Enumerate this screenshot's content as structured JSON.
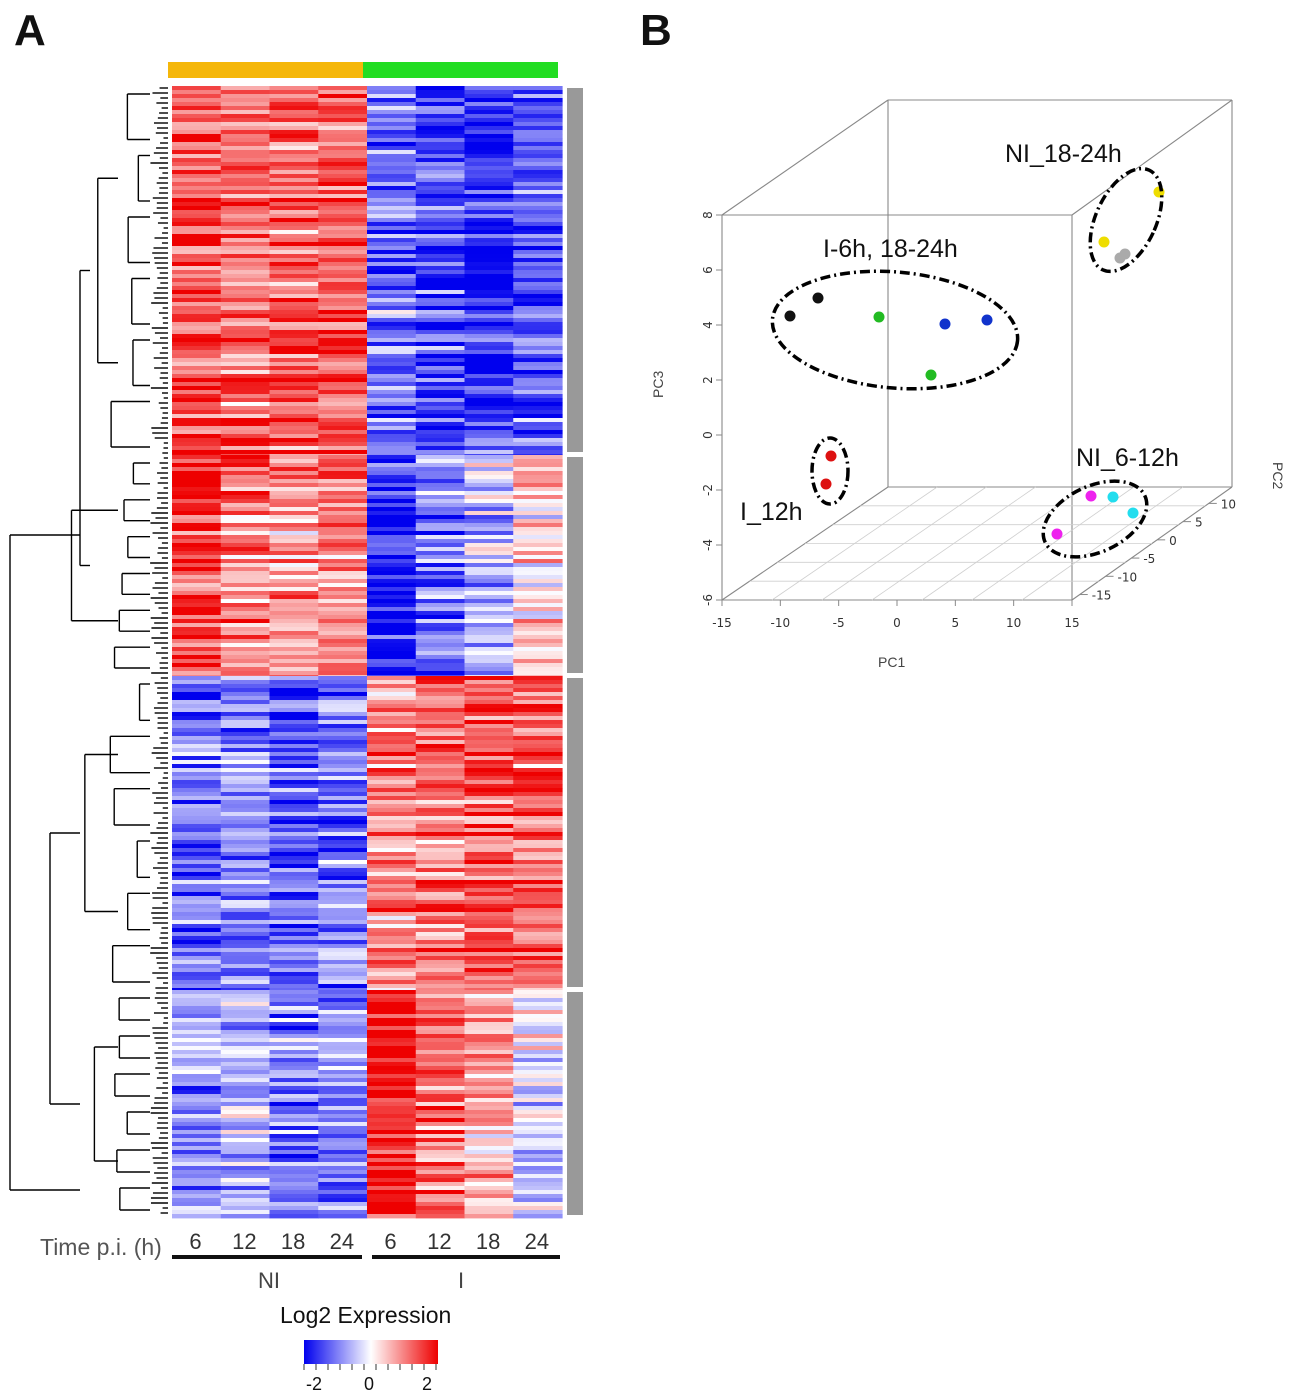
{
  "panels": {
    "a": "A",
    "b": "B"
  },
  "chart_data": [
    {
      "type": "heatmap",
      "title": "",
      "columns": [
        "6",
        "12",
        "18",
        "24",
        "6",
        "12",
        "18",
        "24"
      ],
      "column_groups": [
        {
          "name": "NI",
          "color": "#f5b70a",
          "span": [
            0,
            3
          ]
        },
        {
          "name": "I",
          "color": "#22dd22",
          "span": [
            4,
            7
          ]
        }
      ],
      "xlabel": "Time p.i. (h)",
      "row_clusters": 4,
      "cluster_bar_color": "#999999",
      "cluster_profiles": [
        {
          "cluster": 1,
          "values": [
            1.4,
            1.2,
            1.3,
            1.4,
            -1.0,
            -1.4,
            -1.6,
            -1.2
          ]
        },
        {
          "cluster": 2,
          "values": [
            1.5,
            1.0,
            0.8,
            1.0,
            -1.8,
            -1.0,
            -0.5,
            0.3
          ]
        },
        {
          "cluster": 3,
          "values": [
            -1.0,
            -0.9,
            -1.3,
            -1.0,
            1.0,
            1.2,
            1.4,
            1.2
          ]
        },
        {
          "cluster": 4,
          "values": [
            -0.8,
            -0.6,
            -1.0,
            -1.1,
            1.8,
            1.2,
            0.6,
            -0.3
          ]
        }
      ],
      "colorbar": {
        "label": "Log2 Expression",
        "ticks": [
          "-2",
          "0",
          "2"
        ],
        "colors": [
          "#0000ee",
          "#ffffff",
          "#ee0000"
        ],
        "range": [
          -2,
          2
        ]
      }
    },
    {
      "type": "scatter",
      "subtype": "3d-pca",
      "xlabel": "PC1",
      "ylabel": "PC3",
      "zlabel": "PC2",
      "xticks": [
        "-15",
        "-10",
        "-5",
        "0",
        "5",
        "10",
        "15"
      ],
      "yticks": [
        "-6",
        "-4",
        "-2",
        "0",
        "2",
        "4",
        "6",
        "8"
      ],
      "zticks": [
        "-15",
        "-10",
        "-5",
        "0",
        "5",
        "10"
      ],
      "annotations": [
        "NI_18-24h",
        "I-6h, 18-24h",
        "NI_6-12h",
        "I_12h"
      ],
      "points": [
        {
          "group": "I-6h, 18-24h",
          "color": "#111111"
        },
        {
          "group": "I-6h, 18-24h",
          "color": "#111111"
        },
        {
          "group": "I-6h, 18-24h",
          "color": "#22bb22"
        },
        {
          "group": "I-6h, 18-24h",
          "color": "#22bb22"
        },
        {
          "group": "I-6h, 18-24h",
          "color": "#1133cc"
        },
        {
          "group": "I-6h, 18-24h",
          "color": "#1133cc"
        },
        {
          "group": "I_12h",
          "color": "#dd1111"
        },
        {
          "group": "I_12h",
          "color": "#dd1111"
        },
        {
          "group": "NI_18-24h",
          "color": "#eedd00"
        },
        {
          "group": "NI_18-24h",
          "color": "#eedd00"
        },
        {
          "group": "NI_18-24h",
          "color": "#aaaaaa"
        },
        {
          "group": "NI_18-24h",
          "color": "#aaaaaa"
        },
        {
          "group": "NI_6-12h",
          "color": "#ee22ee"
        },
        {
          "group": "NI_6-12h",
          "color": "#ee22ee"
        },
        {
          "group": "NI_6-12h",
          "color": "#22ddee"
        },
        {
          "group": "NI_6-12h",
          "color": "#22ddee"
        }
      ]
    }
  ]
}
